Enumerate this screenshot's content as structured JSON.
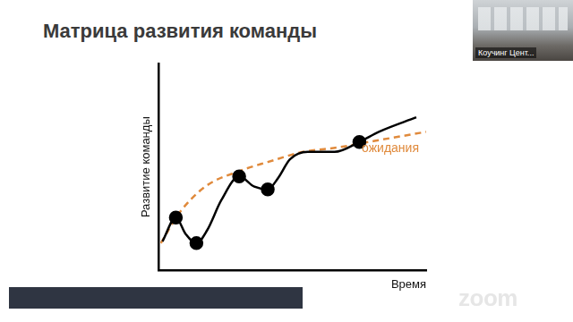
{
  "chart_data": {
    "type": "line",
    "title": "Матрица развития команды",
    "x_label": "Время",
    "y_label": "Развитие команды",
    "xlim": [
      0,
      100
    ],
    "ylim": [
      0,
      100
    ],
    "tick_labels": false,
    "grid": false,
    "series": [
      {
        "color": "#000000",
        "line_style": "solid",
        "marker": "none",
        "x": [
          1.3,
          6.3,
          10,
          14,
          18,
          23.3,
          30,
          35.7,
          40.7,
          44.7,
          49,
          55.7,
          65.7,
          75,
          82.3,
          96.3
        ],
        "values": [
          14.1,
          25.6,
          17.6,
          13.2,
          19.4,
          33.9,
          45.4,
          40.5,
          39.2,
          44.9,
          53.7,
          57.3,
          57.3,
          62.1,
          67,
          74
        ]
      },
      {
        "color": "#000000",
        "type": "scatter",
        "marker": "circle",
        "x": [
          6.3,
          14,
          30,
          40.7,
          75
        ],
        "values": [
          25.6,
          13.2,
          45.4,
          39.2,
          62.1
        ]
      },
      {
        "name": "ожидания",
        "color": "#e08a3c",
        "line_style": "dashed",
        "marker": "none",
        "x": [
          0.7,
          7.3,
          17.3,
          30,
          40.7,
          54,
          67.3,
          80.7,
          100
        ],
        "values": [
          13.2,
          27.3,
          40.5,
          48,
          52.4,
          57.3,
          59.5,
          62.6,
          67
        ]
      }
    ]
  },
  "screen": {
    "video_label": "Коучинг Цент...",
    "logo": "zoom"
  }
}
